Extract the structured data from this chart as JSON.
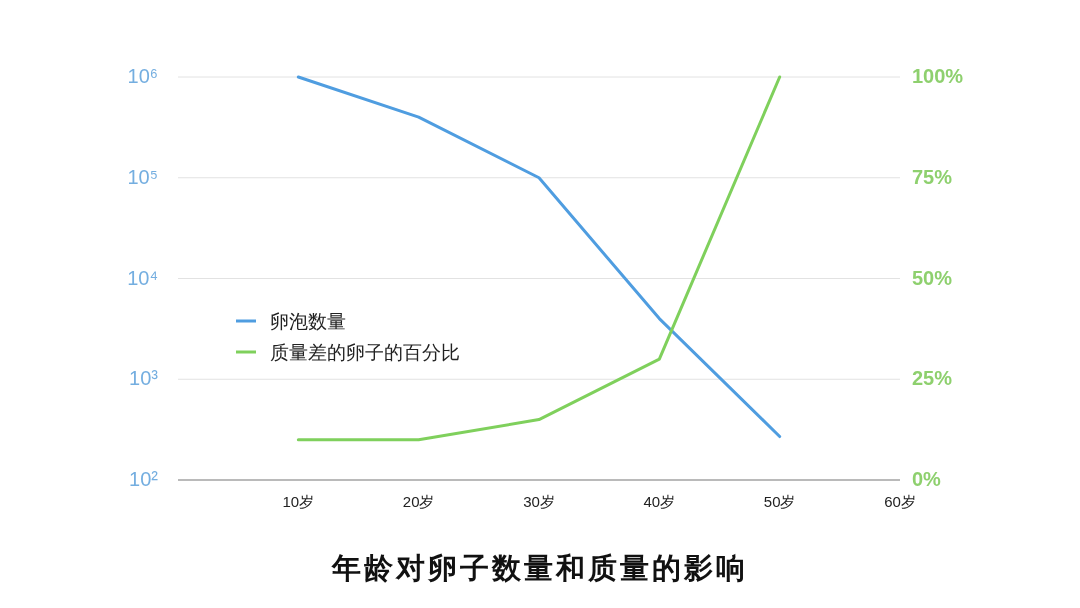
{
  "chart_data": {
    "type": "line",
    "title": "年龄对卵子数量和质量的影响",
    "x": [
      10,
      20,
      30,
      40,
      50
    ],
    "series": [
      {
        "name": "卵泡数量",
        "color": "#4f9de0",
        "values": [
          1000000,
          400000,
          100000,
          4000,
          270
        ]
      },
      {
        "name": "质量差的卵子的百分比",
        "color": "#7fd05c",
        "axis": "y2",
        "values": [
          10,
          10,
          15,
          30,
          100
        ]
      }
    ],
    "xlim": [
      0,
      60
    ],
    "xticks": [
      {
        "value": 10,
        "label": "10岁"
      },
      {
        "value": 20,
        "label": "20岁"
      },
      {
        "value": 30,
        "label": "30岁"
      },
      {
        "value": 40,
        "label": "40岁"
      },
      {
        "value": 50,
        "label": "50岁"
      },
      {
        "value": 60,
        "label": "60岁"
      }
    ],
    "log": "y",
    "ylim": [
      100,
      1000000
    ],
    "yticks": [
      {
        "value": 100,
        "label": "10²"
      },
      {
        "value": 1000,
        "label": "10³"
      },
      {
        "value": 10000,
        "label": "10⁴"
      },
      {
        "value": 100000,
        "label": "10⁵"
      },
      {
        "value": 1000000,
        "label": "10⁶"
      }
    ],
    "y2lim": [
      0,
      100
    ],
    "y2ticks": [
      {
        "value": 0,
        "label": "0%"
      },
      {
        "value": 25,
        "label": "25%"
      },
      {
        "value": 50,
        "label": "50%"
      },
      {
        "value": 75,
        "label": "75%"
      },
      {
        "value": 100,
        "label": "100%"
      }
    ],
    "grid": "y",
    "legend": "center left"
  }
}
